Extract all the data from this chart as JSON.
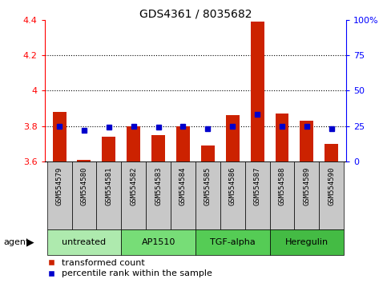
{
  "title": "GDS4361 / 8035682",
  "samples": [
    "GSM554579",
    "GSM554580",
    "GSM554581",
    "GSM554582",
    "GSM554583",
    "GSM554584",
    "GSM554585",
    "GSM554586",
    "GSM554587",
    "GSM554588",
    "GSM554589",
    "GSM554590"
  ],
  "red_values": [
    3.88,
    3.61,
    3.74,
    3.8,
    3.75,
    3.8,
    3.69,
    3.86,
    4.39,
    3.87,
    3.83,
    3.7
  ],
  "blue_values": [
    25,
    22,
    24,
    25,
    24,
    25,
    23,
    25,
    33,
    25,
    25,
    23
  ],
  "ylim_left": [
    3.6,
    4.4
  ],
  "ylim_right": [
    0,
    100
  ],
  "yticks_left": [
    3.6,
    3.8,
    4.0,
    4.2,
    4.4
  ],
  "yticks_right": [
    0,
    25,
    50,
    75,
    100
  ],
  "ytick_labels_right": [
    "0",
    "25",
    "50",
    "75",
    "100%"
  ],
  "grid_values": [
    3.8,
    4.0,
    4.2
  ],
  "groups": [
    {
      "label": "untreated",
      "start": 0,
      "end": 3,
      "color": "#AEEAAE"
    },
    {
      "label": "AP1510",
      "start": 3,
      "end": 6,
      "color": "#77DD77"
    },
    {
      "label": "TGF-alpha",
      "start": 6,
      "end": 9,
      "color": "#55CC55"
    },
    {
      "label": "Heregulin",
      "start": 9,
      "end": 12,
      "color": "#44BB44"
    }
  ],
  "bar_color": "#CC2200",
  "dot_color": "#0000CC",
  "bg_label": "#C8C8C8",
  "title_fontsize": 10,
  "tick_fontsize": 8,
  "label_fontsize": 6.5,
  "group_fontsize": 8,
  "legend_fontsize": 8
}
